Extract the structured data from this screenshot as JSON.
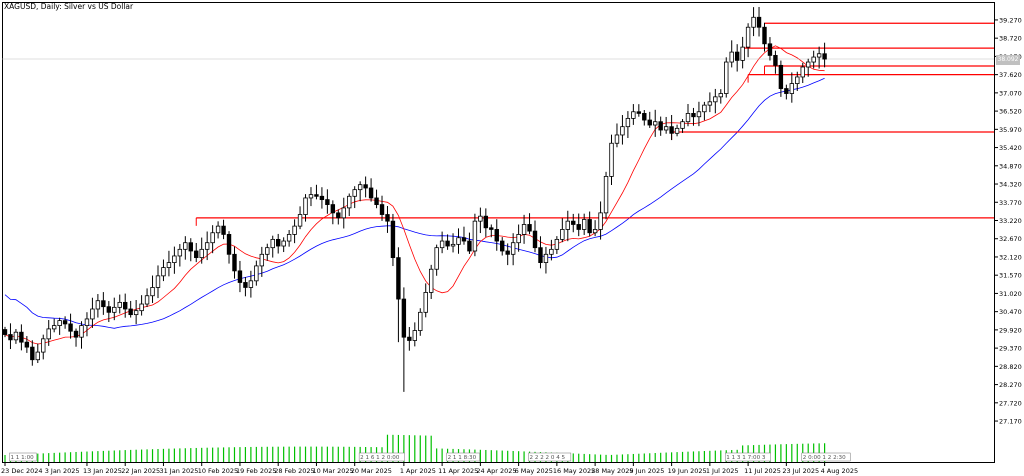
{
  "title": "XAGUSD, Daily:  Silver vs US Dollar",
  "chart_data": {
    "type": "candlestick",
    "symbol": "XAGUSD",
    "timeframe": "Daily",
    "description": "Silver vs US Dollar",
    "ylim": [
      26.9,
      39.6
    ],
    "y_ticks": [
      "39.270",
      "38.720",
      "38.170",
      "37.620",
      "37.070",
      "36.520",
      "35.970",
      "35.420",
      "34.870",
      "34.320",
      "33.770",
      "33.220",
      "32.670",
      "32.120",
      "31.570",
      "31.020",
      "30.470",
      "29.920",
      "29.370",
      "28.820",
      "28.270",
      "27.720",
      "27.170"
    ],
    "x_ticks": [
      {
        "i": 0,
        "label": "23 Dec 2024"
      },
      {
        "i": 8,
        "label": "3 Jan 2025"
      },
      {
        "i": 15,
        "label": "13 Jan 2025"
      },
      {
        "i": 22,
        "label": "22 Jan 2025"
      },
      {
        "i": 29,
        "label": "31 Jan 2025"
      },
      {
        "i": 36,
        "label": "10 Feb 2025"
      },
      {
        "i": 43,
        "label": "19 Feb 2025"
      },
      {
        "i": 50,
        "label": "28 Feb 2025"
      },
      {
        "i": 57,
        "label": "10 Mar 2025"
      },
      {
        "i": 64,
        "label": "20 Mar 2025"
      },
      {
        "i": 73,
        "label": "1 Apr 2025"
      },
      {
        "i": 80,
        "label": "11 Apr 2025"
      },
      {
        "i": 87,
        "label": "24 Apr 2025"
      },
      {
        "i": 94,
        "label": "6 May 2025"
      },
      {
        "i": 101,
        "label": "16 May 2025"
      },
      {
        "i": 108,
        "label": "28 May 2025"
      },
      {
        "i": 115,
        "label": "9 Jun 2025"
      },
      {
        "i": 122,
        "label": "19 Jun 2025"
      },
      {
        "i": 129,
        "label": "1 Jul 2025"
      },
      {
        "i": 136,
        "label": "11 Jul 2025"
      },
      {
        "i": 143,
        "label": "23 Jul 2025"
      },
      {
        "i": 150,
        "label": "4 Aug 2025"
      }
    ],
    "current_price": "38.092",
    "close": [
      29.78,
      29.62,
      29.85,
      29.55,
      29.4,
      29.02,
      29.25,
      29.65,
      29.95,
      30.05,
      30.2,
      30.1,
      29.88,
      29.7,
      30.05,
      30.25,
      30.55,
      30.8,
      30.62,
      30.45,
      30.6,
      30.75,
      30.55,
      30.38,
      30.5,
      30.7,
      30.95,
      31.2,
      31.55,
      31.8,
      31.95,
      32.15,
      32.35,
      32.55,
      32.3,
      32.1,
      32.35,
      32.55,
      32.85,
      33.05,
      32.8,
      32.2,
      31.7,
      31.35,
      31.2,
      31.4,
      31.85,
      32.2,
      32.4,
      32.65,
      32.45,
      32.6,
      32.8,
      33.05,
      33.4,
      33.9,
      34.0,
      33.95,
      33.85,
      33.7,
      33.45,
      33.3,
      33.6,
      33.95,
      34.15,
      34.3,
      34.2,
      33.9,
      33.7,
      33.4,
      33.2,
      32.1,
      30.85,
      29.7,
      29.6,
      29.9,
      30.45,
      31.05,
      31.75,
      32.4,
      32.6,
      32.45,
      32.5,
      32.7,
      32.6,
      32.3,
      33.2,
      33.35,
      33.0,
      32.95,
      32.6,
      32.3,
      32.2,
      32.55,
      32.8,
      33.1,
      32.9,
      32.4,
      31.95,
      32.2,
      32.35,
      32.65,
      32.95,
      33.2,
      33.1,
      32.95,
      33.25,
      32.85,
      32.95,
      33.45,
      34.55,
      35.55,
      35.8,
      36.05,
      36.3,
      36.5,
      36.45,
      36.25,
      36.1,
      36.2,
      35.95,
      36.05,
      35.85,
      36.0,
      36.2,
      36.45,
      36.35,
      36.5,
      36.7,
      36.8,
      36.95,
      37.05,
      38.0,
      38.3,
      38.05,
      38.45,
      39.05,
      39.35,
      39.05,
      38.55,
      38.2,
      37.9,
      37.2,
      37.05,
      37.35,
      37.55,
      37.85,
      38.0,
      38.15,
      38.25,
      38.09
    ],
    "resistance_levels": [
      {
        "value": 39.17,
        "from_index": 139
      },
      {
        "value": 38.42,
        "from_index": 135
      },
      {
        "value": 37.88,
        "from_index": 139
      },
      {
        "value": 37.62,
        "from_index": 136
      },
      {
        "value": 35.89,
        "from_index": 122
      },
      {
        "value": 33.3,
        "from_index": 35
      }
    ],
    "ma_fast_color": "#ff0000",
    "ma_slow_color": "#0000ff",
    "candle_color": "#000000",
    "level_color": "#ff0000",
    "volume_color": "#00c000",
    "grid": false
  },
  "event_labels": [
    {
      "text": "1 1 1:00",
      "i": 1
    },
    {
      "text": "2 1 6 1 2 0:00",
      "i": 65
    },
    {
      "text": "2 1 1 8:30",
      "i": 81
    },
    {
      "text": "2 2 2 2 0 4 5",
      "i": 96
    },
    {
      "text": "1 1 3 1 7:00 3",
      "i": 132
    },
    {
      "text": "2 0:00 1 2 2:30",
      "i": 146
    }
  ]
}
